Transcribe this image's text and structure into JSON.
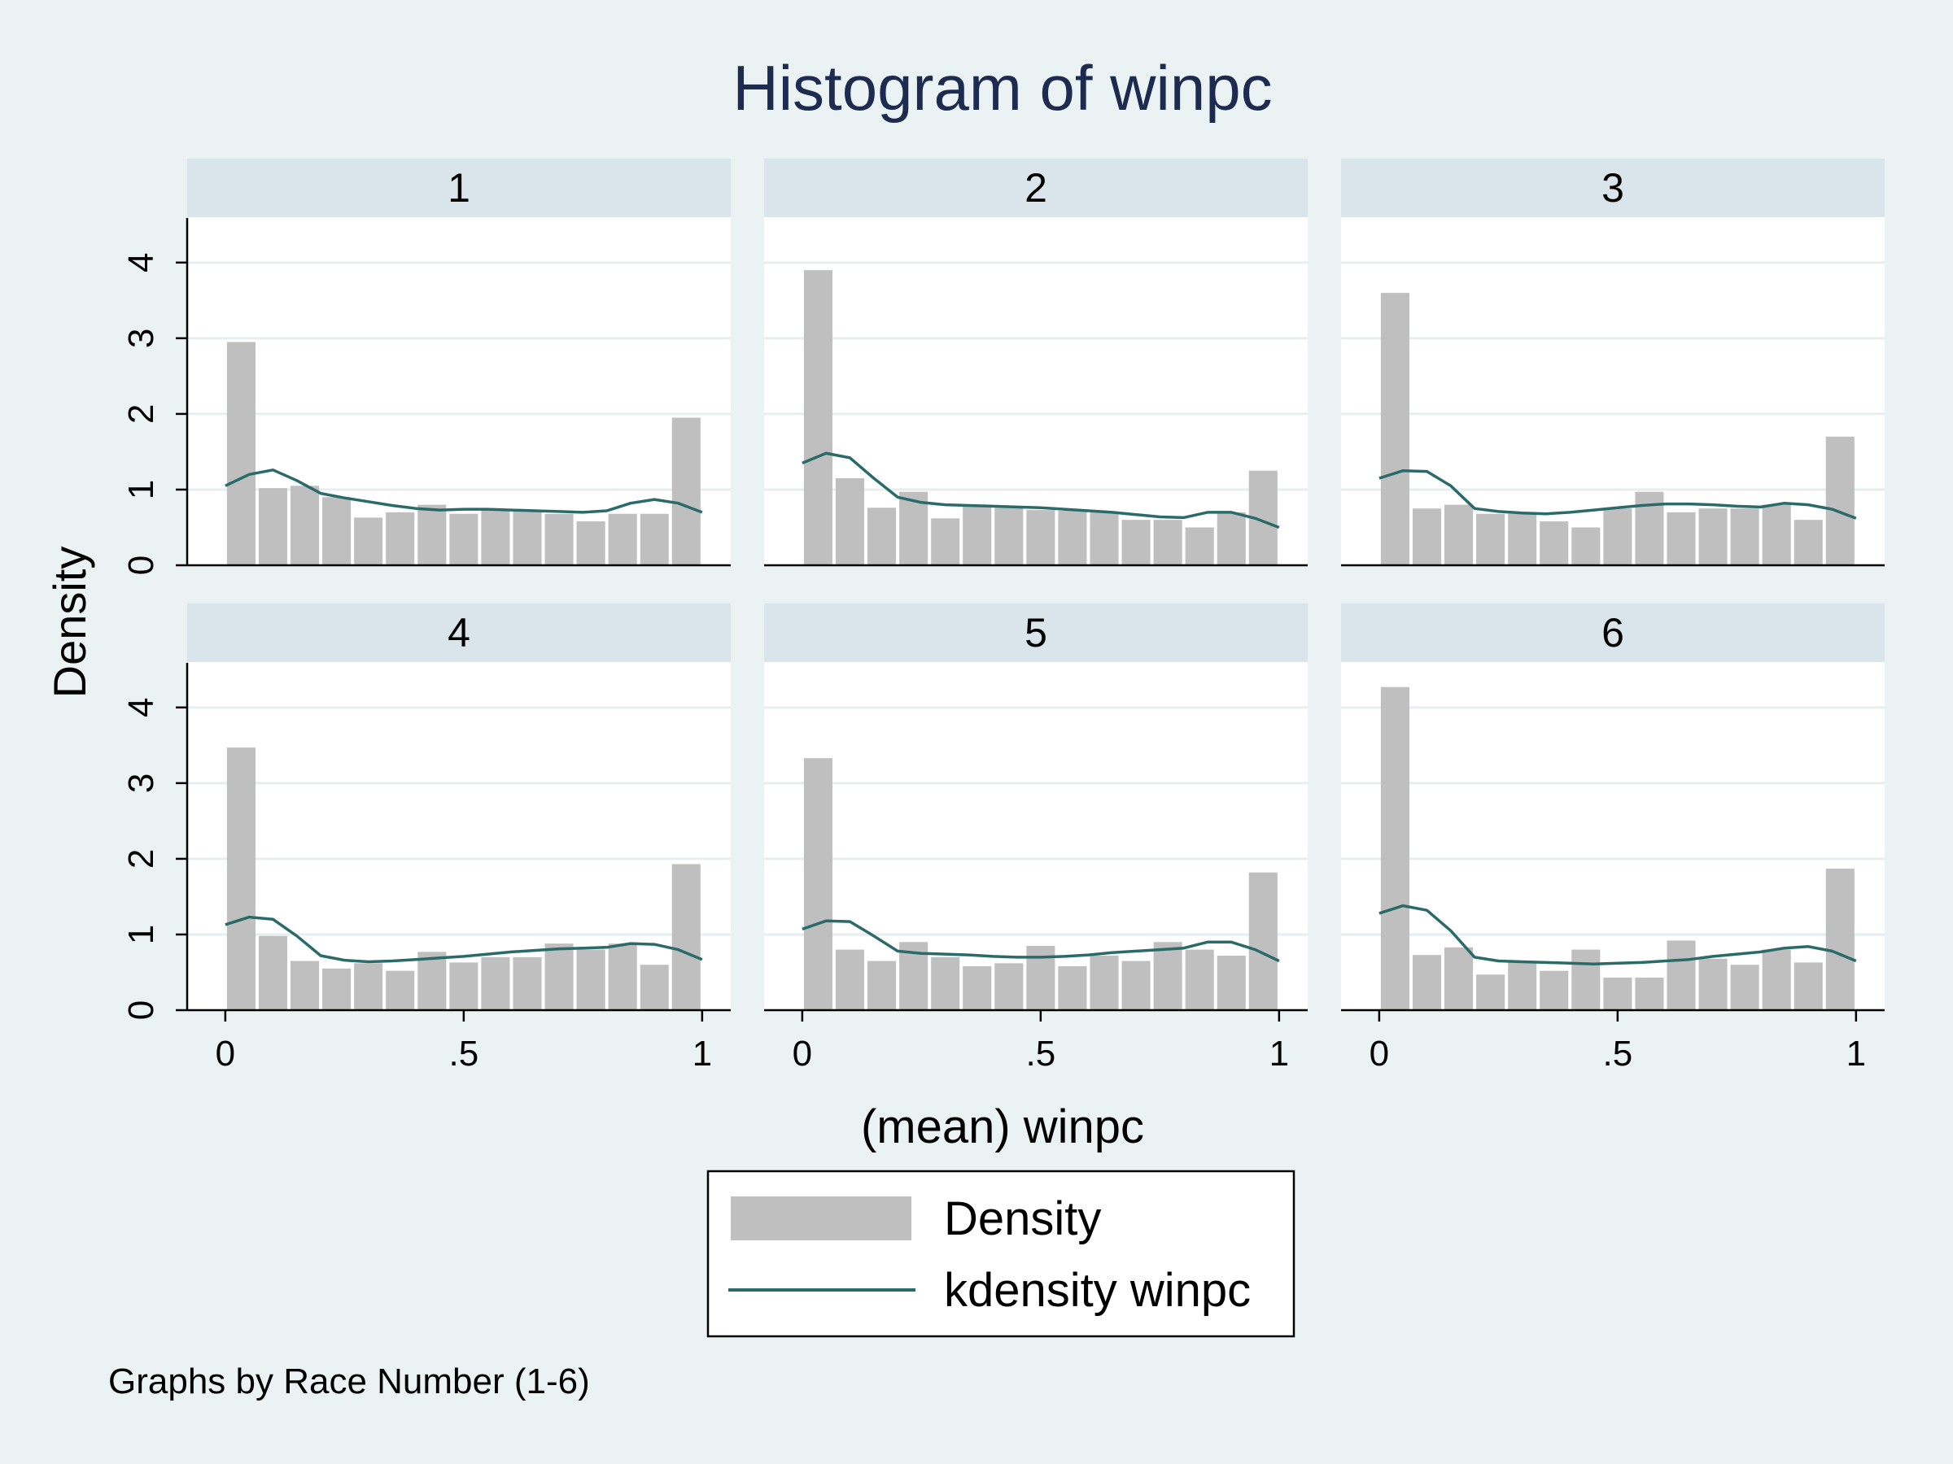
{
  "chart_data": {
    "type": "bar",
    "title": "Histogram of winpc",
    "xlabel": "(mean) winpc",
    "ylabel": "Density",
    "note": "Graphs by Race Number (1-6)",
    "xlim": [
      -0.08,
      1.06
    ],
    "ylim": [
      0,
      4.6
    ],
    "xticks": [
      0,
      0.5,
      1
    ],
    "xtick_labels": [
      "0",
      ".5",
      "1"
    ],
    "yticks": [
      0,
      1,
      2,
      3,
      4
    ],
    "ytick_labels": [
      "0",
      "1",
      "2",
      "3",
      "4"
    ],
    "bin_edges": [
      0,
      0.0667,
      0.1333,
      0.2,
      0.2667,
      0.3333,
      0.4,
      0.4667,
      0.5333,
      0.6,
      0.6667,
      0.7333,
      0.8,
      0.8667,
      0.9333,
      1.0
    ],
    "grid": true,
    "legend": {
      "position": "bottom-center",
      "entries": [
        {
          "name": "Density",
          "kind": "bar"
        },
        {
          "name": "kdensity winpc",
          "kind": "line"
        }
      ]
    },
    "colors": {
      "background": "#eaf2f3",
      "panel": "#ffffff",
      "strip": "#d9e5ea",
      "bar": "#bfbfbf",
      "kde": "#2a6b6a",
      "title": "#1c2b4f",
      "text": "#000000",
      "grid": "#e6eef0"
    },
    "panels": [
      {
        "label": "1",
        "bars": [
          2.95,
          1.02,
          1.05,
          0.9,
          0.63,
          0.7,
          0.8,
          0.68,
          0.73,
          0.73,
          0.68,
          0.58,
          0.68,
          0.68,
          1.95
        ],
        "kde": {
          "x": [
            0,
            0.05,
            0.1,
            0.15,
            0.2,
            0.25,
            0.3,
            0.35,
            0.4,
            0.45,
            0.5,
            0.55,
            0.6,
            0.65,
            0.7,
            0.75,
            0.8,
            0.85,
            0.9,
            0.95,
            1.0
          ],
          "y": [
            1.05,
            1.2,
            1.26,
            1.12,
            0.95,
            0.89,
            0.84,
            0.79,
            0.75,
            0.73,
            0.74,
            0.74,
            0.73,
            0.72,
            0.71,
            0.7,
            0.72,
            0.82,
            0.87,
            0.82,
            0.7
          ]
        }
      },
      {
        "label": "2",
        "bars": [
          3.9,
          1.15,
          0.76,
          0.97,
          0.62,
          0.8,
          0.76,
          0.73,
          0.72,
          0.7,
          0.6,
          0.6,
          0.5,
          0.7,
          1.25
        ],
        "kde": {
          "x": [
            0,
            0.05,
            0.1,
            0.15,
            0.2,
            0.25,
            0.3,
            0.35,
            0.4,
            0.45,
            0.5,
            0.55,
            0.6,
            0.65,
            0.7,
            0.75,
            0.8,
            0.85,
            0.9,
            0.95,
            1.0
          ],
          "y": [
            1.35,
            1.48,
            1.42,
            1.15,
            0.9,
            0.83,
            0.8,
            0.79,
            0.78,
            0.77,
            0.76,
            0.74,
            0.72,
            0.7,
            0.67,
            0.64,
            0.63,
            0.7,
            0.7,
            0.62,
            0.5
          ]
        }
      },
      {
        "label": "3",
        "bars": [
          3.6,
          0.75,
          0.8,
          0.68,
          0.68,
          0.58,
          0.5,
          0.75,
          0.97,
          0.7,
          0.75,
          0.75,
          0.8,
          0.6,
          1.7
        ],
        "kde": {
          "x": [
            0,
            0.05,
            0.1,
            0.15,
            0.2,
            0.25,
            0.3,
            0.35,
            0.4,
            0.45,
            0.5,
            0.55,
            0.6,
            0.65,
            0.7,
            0.75,
            0.8,
            0.85,
            0.9,
            0.95,
            1.0
          ],
          "y": [
            1.15,
            1.25,
            1.24,
            1.05,
            0.75,
            0.71,
            0.69,
            0.68,
            0.7,
            0.73,
            0.76,
            0.79,
            0.81,
            0.81,
            0.8,
            0.78,
            0.77,
            0.82,
            0.8,
            0.74,
            0.62
          ]
        }
      },
      {
        "label": "4",
        "bars": [
          3.47,
          0.98,
          0.65,
          0.55,
          0.62,
          0.52,
          0.77,
          0.63,
          0.7,
          0.7,
          0.88,
          0.8,
          0.88,
          0.6,
          1.93
        ],
        "kde": {
          "x": [
            0,
            0.05,
            0.1,
            0.15,
            0.2,
            0.25,
            0.3,
            0.35,
            0.4,
            0.45,
            0.5,
            0.55,
            0.6,
            0.65,
            0.7,
            0.75,
            0.8,
            0.85,
            0.9,
            0.95,
            1.0
          ],
          "y": [
            1.13,
            1.23,
            1.2,
            0.98,
            0.72,
            0.66,
            0.64,
            0.65,
            0.67,
            0.69,
            0.71,
            0.74,
            0.77,
            0.79,
            0.81,
            0.82,
            0.83,
            0.88,
            0.87,
            0.8,
            0.67
          ]
        }
      },
      {
        "label": "5",
        "bars": [
          3.33,
          0.8,
          0.65,
          0.9,
          0.7,
          0.58,
          0.62,
          0.85,
          0.58,
          0.72,
          0.65,
          0.9,
          0.8,
          0.72,
          1.82
        ],
        "kde": {
          "x": [
            0,
            0.05,
            0.1,
            0.15,
            0.2,
            0.25,
            0.3,
            0.35,
            0.4,
            0.45,
            0.5,
            0.55,
            0.6,
            0.65,
            0.7,
            0.75,
            0.8,
            0.85,
            0.9,
            0.95,
            1.0
          ],
          "y": [
            1.07,
            1.18,
            1.17,
            0.98,
            0.78,
            0.75,
            0.74,
            0.73,
            0.71,
            0.7,
            0.7,
            0.71,
            0.73,
            0.76,
            0.78,
            0.8,
            0.82,
            0.9,
            0.9,
            0.8,
            0.65
          ]
        }
      },
      {
        "label": "6",
        "bars": [
          4.27,
          0.73,
          0.83,
          0.47,
          0.65,
          0.52,
          0.8,
          0.43,
          0.43,
          0.92,
          0.68,
          0.6,
          0.8,
          0.63,
          1.87
        ],
        "kde": {
          "x": [
            0,
            0.05,
            0.1,
            0.15,
            0.2,
            0.25,
            0.3,
            0.35,
            0.4,
            0.45,
            0.5,
            0.55,
            0.6,
            0.65,
            0.7,
            0.75,
            0.8,
            0.85,
            0.9,
            0.95,
            1.0
          ],
          "y": [
            1.28,
            1.38,
            1.32,
            1.05,
            0.7,
            0.65,
            0.64,
            0.63,
            0.62,
            0.61,
            0.62,
            0.63,
            0.65,
            0.67,
            0.71,
            0.74,
            0.77,
            0.82,
            0.84,
            0.78,
            0.65
          ]
        }
      }
    ]
  }
}
